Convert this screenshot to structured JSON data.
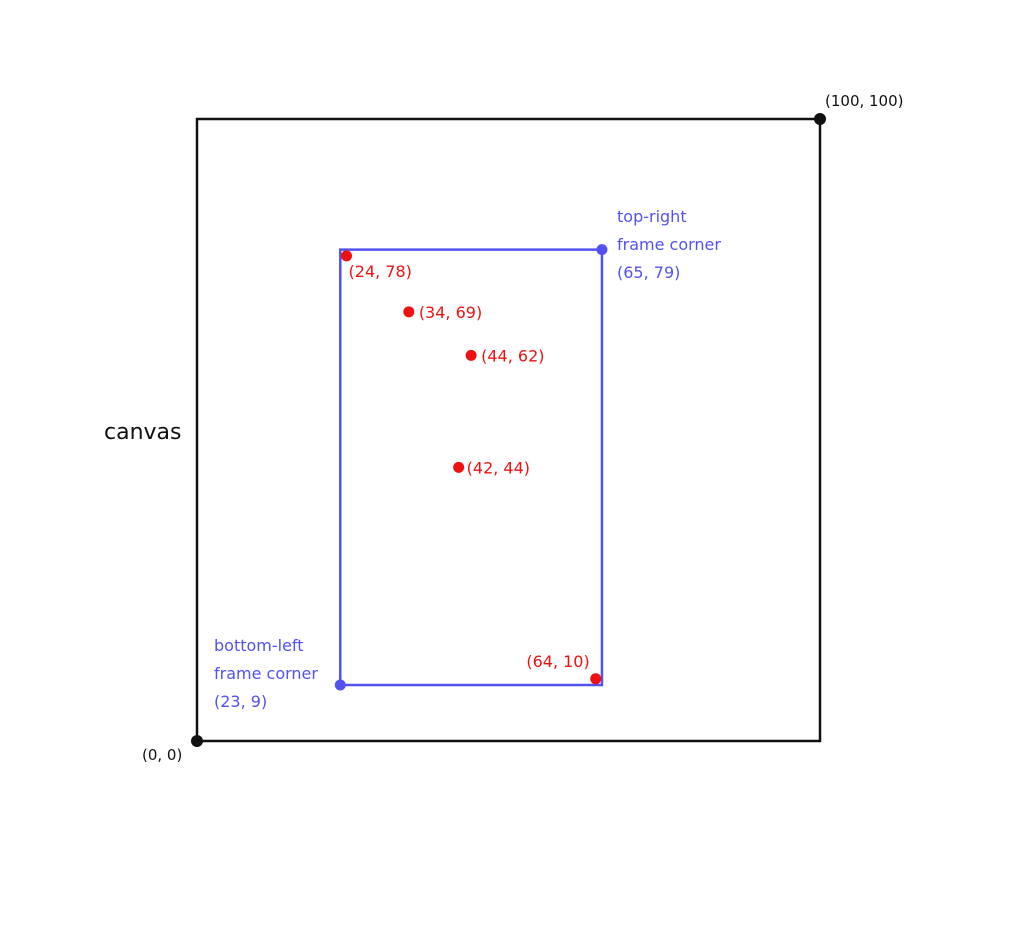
{
  "canvas": {
    "label": "canvas",
    "x_range": [
      0,
      100
    ],
    "y_range": [
      0,
      100
    ],
    "color": "#111111",
    "corner_labels": {
      "origin": "(0, 0)",
      "top_right": "(100, 100)"
    }
  },
  "frame": {
    "color": "#5252f2",
    "bottom_left": {
      "x": 23,
      "y": 9,
      "label_lines": [
        "bottom-left",
        "frame corner",
        "(23, 9)"
      ]
    },
    "top_right": {
      "x": 65,
      "y": 79,
      "label_lines": [
        "top-right",
        "frame corner",
        "(65, 79)"
      ]
    }
  },
  "points": {
    "color": "#ee1111",
    "items": [
      {
        "x": 24,
        "y": 78,
        "label": "(24, 78)"
      },
      {
        "x": 34,
        "y": 69,
        "label": "(34, 69)"
      },
      {
        "x": 44,
        "y": 62,
        "label": "(44, 62)"
      },
      {
        "x": 42,
        "y": 44,
        "label": "(42, 44)"
      },
      {
        "x": 64,
        "y": 10,
        "label": "(64, 10)"
      }
    ]
  }
}
